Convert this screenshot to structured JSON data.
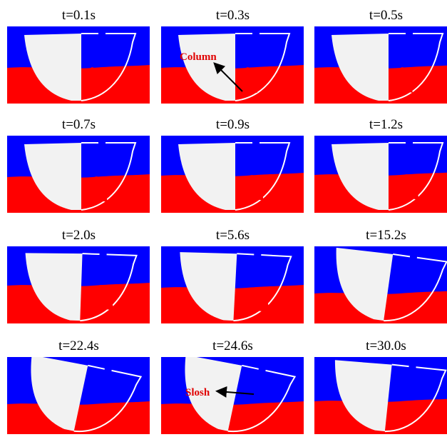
{
  "panels": [
    {
      "title": "t=0.1s"
    },
    {
      "title": "t=0.3s",
      "annotation": "Column"
    },
    {
      "title": "t=0.5s"
    },
    {
      "title": "t=0.7s"
    },
    {
      "title": "t=0.9s"
    },
    {
      "title": "t=1.2s"
    },
    {
      "title": "t=2.0s"
    },
    {
      "title": "t=5.6s"
    },
    {
      "title": "t=15.2s"
    },
    {
      "title": "t=22.4s"
    },
    {
      "title": "t=24.6s",
      "annotation": "Slosh"
    },
    {
      "title": "t=30.0s"
    }
  ]
}
